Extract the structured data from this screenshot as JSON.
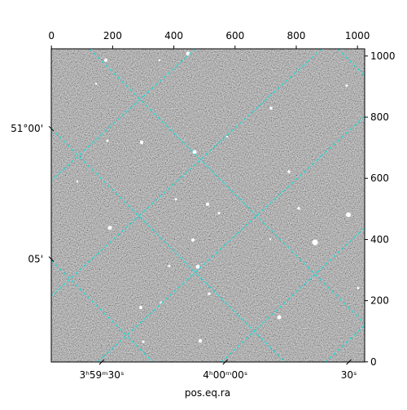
{
  "chart_data": {
    "type": "image",
    "xlabel": "pos.eq.ra",
    "xlim": [
      -0.5,
      1023.5
    ],
    "xticks": [
      0,
      200,
      400,
      600,
      800,
      1000
    ],
    "ylim": [
      -0.5,
      1023.5
    ],
    "yticks": [
      0,
      200,
      400,
      600,
      800,
      1000
    ],
    "ralim": [
      59.824,
      60.141
    ],
    "raticks": [
      {
        "value": 59.875,
        "label": "3ʰ59ᵐ30ˢ"
      },
      {
        "value": 60.0,
        "label": "4ʰ00ᵐ00ˢ"
      },
      {
        "value": 60.125,
        "label": "30ˢ"
      }
    ],
    "declim": [
      50.949,
      51.149
    ],
    "decticks": [
      {
        "value": 51.0,
        "label": "51°00'"
      },
      {
        "value": 51.0833,
        "label": "05'"
      }
    ],
    "grid_color": "#00e5e5"
  }
}
